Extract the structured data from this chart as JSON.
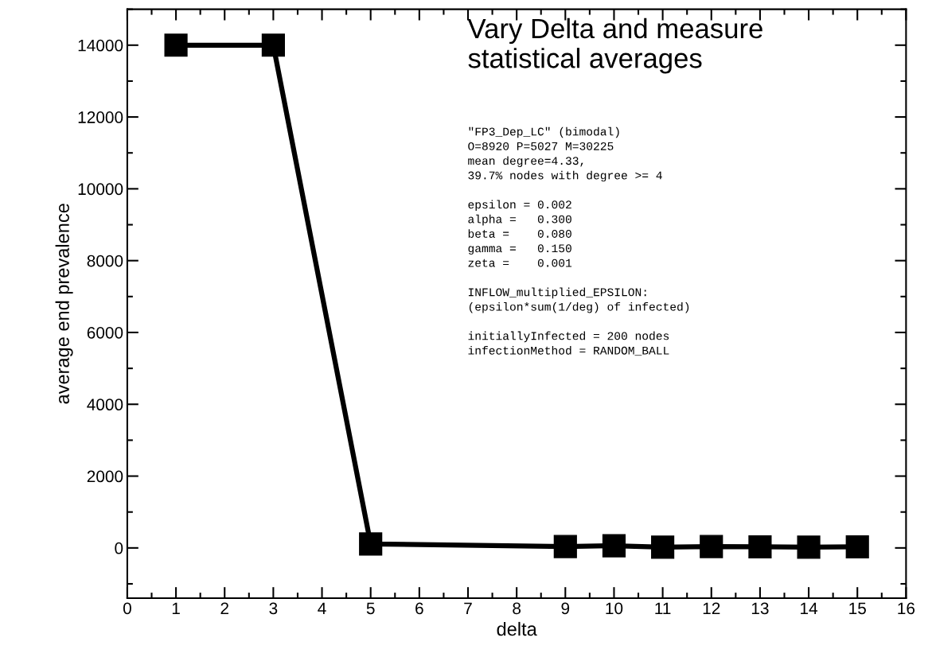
{
  "chart_data": {
    "type": "line",
    "title": "Vary Delta and measure\nstatistical averages",
    "xlabel": "delta",
    "ylabel": "average end prevalence",
    "x": [
      1,
      3,
      5,
      9,
      10,
      11,
      12,
      13,
      14,
      15
    ],
    "series": [
      {
        "color": "#000000",
        "values": [
          14000,
          14000,
          110,
          40,
          60,
          20,
          40,
          30,
          20,
          30
        ]
      }
    ],
    "xlim": [
      0,
      16
    ],
    "xticks": [
      0,
      1,
      2,
      3,
      4,
      5,
      6,
      7,
      8,
      9,
      10,
      11,
      12,
      13,
      14,
      15,
      16
    ],
    "ylim": [
      -1400,
      15000
    ],
    "yticks": [
      0,
      2000,
      4000,
      6000,
      8000,
      10000,
      12000,
      14000
    ],
    "grid": false,
    "legend": false,
    "marker": "square",
    "line_style": "solid",
    "annotations": [
      "\"FP3_Dep_LC\" (bimodal)\nO=8920 P=5027 M=30225\nmean degree=4.33,\n39.7% nodes with degree >= 4\n\nepsilon = 0.002\nalpha =   0.300\nbeta =    0.080\ngamma =   0.150\nzeta =    0.001\n\nINFLOW_multiplied_EPSILON:\n(epsilon*sum(1/deg) of infected)\n\ninitiallyInfected = 200 nodes\ninfectionMethod = RANDOM_BALL"
    ]
  }
}
